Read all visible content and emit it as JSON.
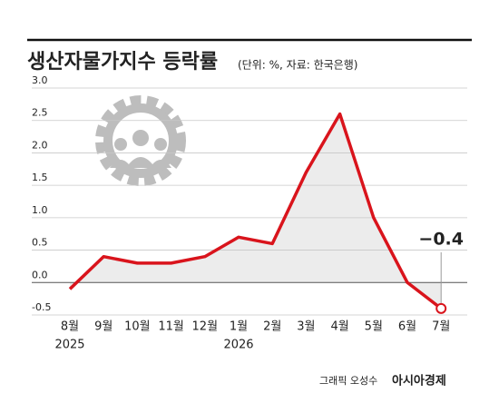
{
  "chart_data": {
    "type": "line",
    "title": "생산자물가지수 등락률",
    "subtitle": "(단위: %, 자료: 한국은행)",
    "categories": [
      "8월",
      "9월",
      "10월",
      "11월",
      "12월",
      "1월",
      "2월",
      "3월",
      "4월",
      "5월",
      "6월",
      "7월"
    ],
    "years": [
      "2025",
      null,
      null,
      null,
      null,
      "2026",
      null,
      null,
      null,
      null,
      null,
      null
    ],
    "values": [
      -0.1,
      0.4,
      0.3,
      0.3,
      0.4,
      0.7,
      0.6,
      1.7,
      2.6,
      1.0,
      0.0,
      -0.4
    ],
    "value_labels": [
      null,
      null,
      null,
      null,
      null,
      null,
      null,
      null,
      null,
      null,
      null,
      "−0.4"
    ],
    "color": "#d9141c",
    "area_color": "#ececec",
    "ylim": [
      -0.5,
      3
    ],
    "yticks": [
      {
        "value": 3,
        "label": "3.0"
      },
      2.5,
      {
        "value": 2,
        "label": "2.0"
      },
      1.5,
      {
        "value": 1,
        "label": "1.0"
      },
      0.5,
      {
        "value": 0,
        "label": "0.0"
      },
      -0.5
    ],
    "grid": true,
    "credit": "그래픽 오성수",
    "source_logo": "아시아경제"
  }
}
